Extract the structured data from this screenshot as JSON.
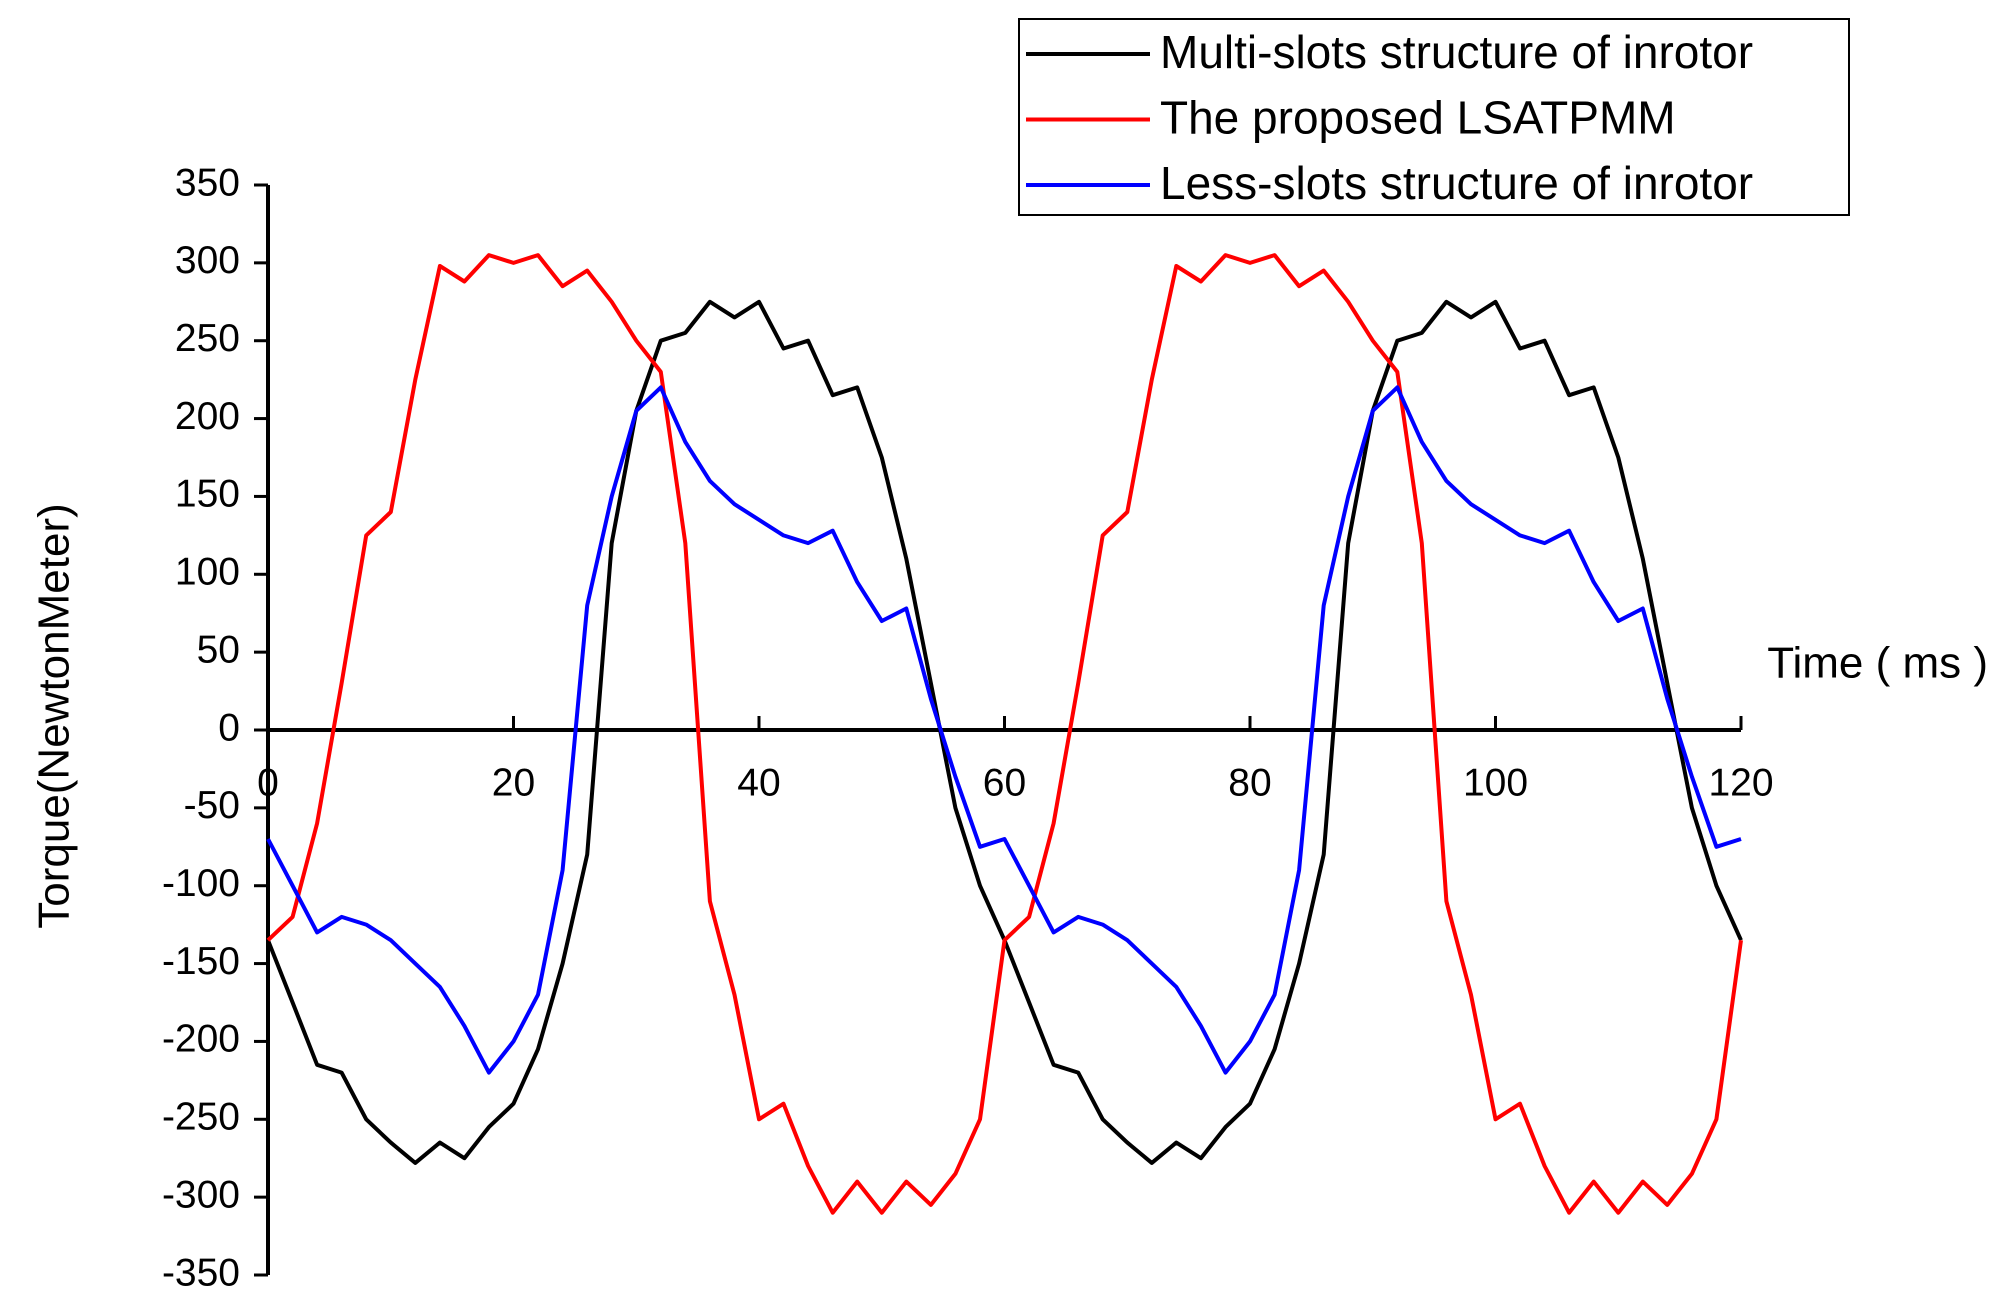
{
  "chart_data": {
    "type": "line",
    "ylabel": "Torque(NewtonMeter)",
    "xlabel": "Time ( ms )",
    "x": [
      0,
      2,
      4,
      6,
      8,
      10,
      12,
      14,
      16,
      18,
      20,
      22,
      24,
      26,
      28,
      30,
      32,
      34,
      36,
      38,
      40,
      42,
      44,
      46,
      48,
      50,
      52,
      54,
      56,
      58,
      60,
      62,
      64,
      66,
      68,
      70,
      72,
      74,
      76,
      78,
      80,
      82,
      84,
      86,
      88,
      90,
      92,
      94,
      96,
      98,
      100,
      102,
      104,
      106,
      108,
      110,
      112,
      114,
      116,
      118,
      120
    ],
    "series": [
      {
        "name": "Multi-slots structure of inrotor",
        "color": "#000000",
        "values": [
          -135,
          -175,
          -215,
          -220,
          -250,
          -265,
          -278,
          -265,
          -275,
          -255,
          -240,
          -205,
          -150,
          -80,
          120,
          205,
          250,
          255,
          275,
          265,
          275,
          245,
          250,
          215,
          220,
          175,
          110,
          30,
          -50,
          -100,
          -135,
          -175,
          -215,
          -220,
          -250,
          -265,
          -278,
          -265,
          -275,
          -255,
          -240,
          -205,
          -150,
          -80,
          120,
          205,
          250,
          255,
          275,
          265,
          275,
          245,
          250,
          215,
          220,
          175,
          110,
          30,
          -50,
          -100,
          -135
        ]
      },
      {
        "name": "The proposed LSATPMM",
        "color": "#ff0000",
        "values": [
          -135,
          -120,
          -60,
          30,
          125,
          140,
          225,
          298,
          288,
          305,
          300,
          305,
          285,
          295,
          275,
          250,
          230,
          120,
          -110,
          -170,
          -250,
          -240,
          -280,
          -310,
          -290,
          -310,
          -290,
          -305,
          -285,
          -250,
          -135,
          -120,
          -60,
          30,
          125,
          140,
          225,
          298,
          288,
          305,
          300,
          305,
          285,
          295,
          275,
          250,
          230,
          120,
          -110,
          -170,
          -250,
          -240,
          -280,
          -310,
          -290,
          -310,
          -290,
          -305,
          -285,
          -250,
          -135
        ]
      },
      {
        "name": "Less-slots structure of inrotor",
        "color": "#0000ff",
        "values": [
          -70,
          -100,
          -130,
          -120,
          -125,
          -135,
          -150,
          -165,
          -190,
          -220,
          -200,
          -170,
          -90,
          80,
          150,
          205,
          220,
          185,
          160,
          145,
          135,
          125,
          120,
          128,
          95,
          70,
          78,
          20,
          -30,
          -75,
          -70,
          -100,
          -130,
          -120,
          -125,
          -135,
          -150,
          -165,
          -190,
          -220,
          -200,
          -170,
          -90,
          80,
          150,
          205,
          220,
          185,
          160,
          145,
          135,
          125,
          120,
          128,
          95,
          70,
          78,
          20,
          -30,
          -75,
          -70
        ]
      }
    ],
    "xlim": [
      0,
      120
    ],
    "xticks": [
      0,
      20,
      40,
      60,
      80,
      100,
      120
    ],
    "ylim": [
      -350,
      350
    ],
    "yticks": [
      -350,
      -300,
      -250,
      -200,
      -150,
      -100,
      -50,
      0,
      50,
      100,
      150,
      200,
      250,
      300,
      350
    ],
    "grid": false,
    "legend": "top-right"
  }
}
